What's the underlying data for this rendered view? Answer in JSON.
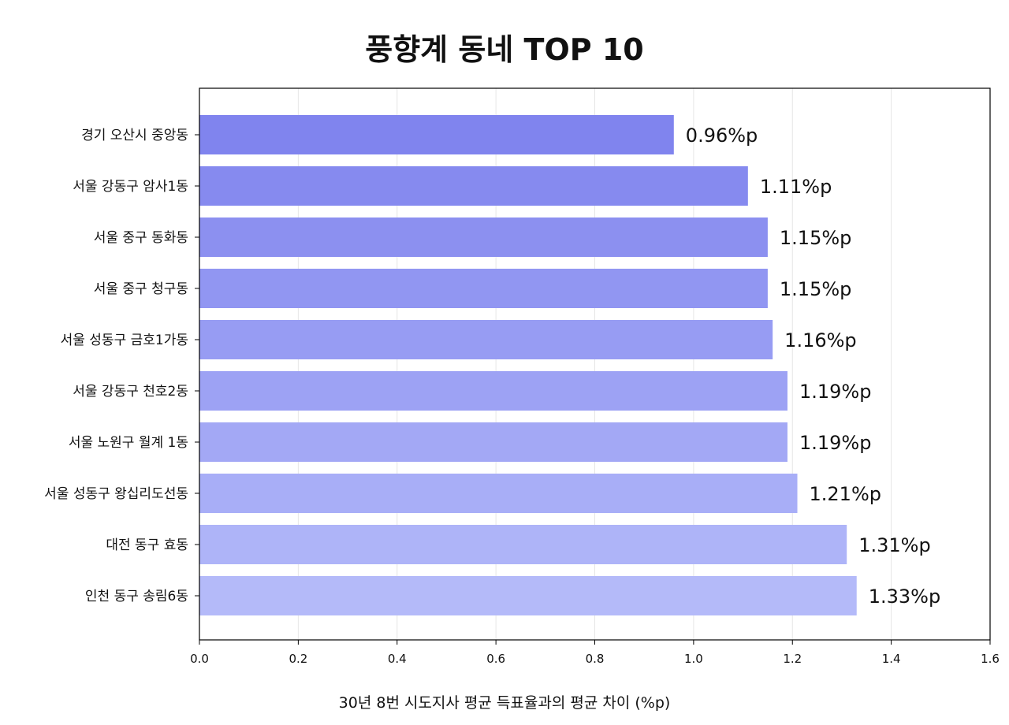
{
  "chart_data": {
    "type": "bar",
    "orientation": "horizontal",
    "title": "풍향계 동네 TOP 10",
    "xlabel": "30년 8번 시도지사 평균 득표율과의 평균 차이 (%p)",
    "ylabel": "",
    "xlim": [
      0,
      1.6
    ],
    "xticks": [
      "0.0",
      "0.2",
      "0.4",
      "0.6",
      "0.8",
      "1.0",
      "1.2",
      "1.4",
      "1.6"
    ],
    "grid": "vertical",
    "categories": [
      "경기 오산시 중앙동",
      "서울 강동구 암사1동",
      "서울 중구 동화동",
      "서울 중구 청구동",
      "서울 성동구 금호1가동",
      "서울 강동구 천호2동",
      "서울 노원구 월계 1동",
      "서울 성동구 왕십리도선동",
      "대전 동구 효동",
      "인천 동구 송림6동"
    ],
    "values": [
      0.96,
      1.11,
      1.15,
      1.15,
      1.16,
      1.19,
      1.19,
      1.21,
      1.31,
      1.33
    ],
    "data_labels": [
      "0.96%p",
      "1.11%p",
      "1.15%p",
      "1.15%p",
      "1.16%p",
      "1.19%p",
      "1.19%p",
      "1.21%p",
      "1.31%p",
      "1.33%p"
    ],
    "colors": {
      "bar_start": "#8084ee",
      "bar_end": "#b4baf9",
      "grid": "#e6e6e6",
      "axis": "#000000"
    }
  }
}
